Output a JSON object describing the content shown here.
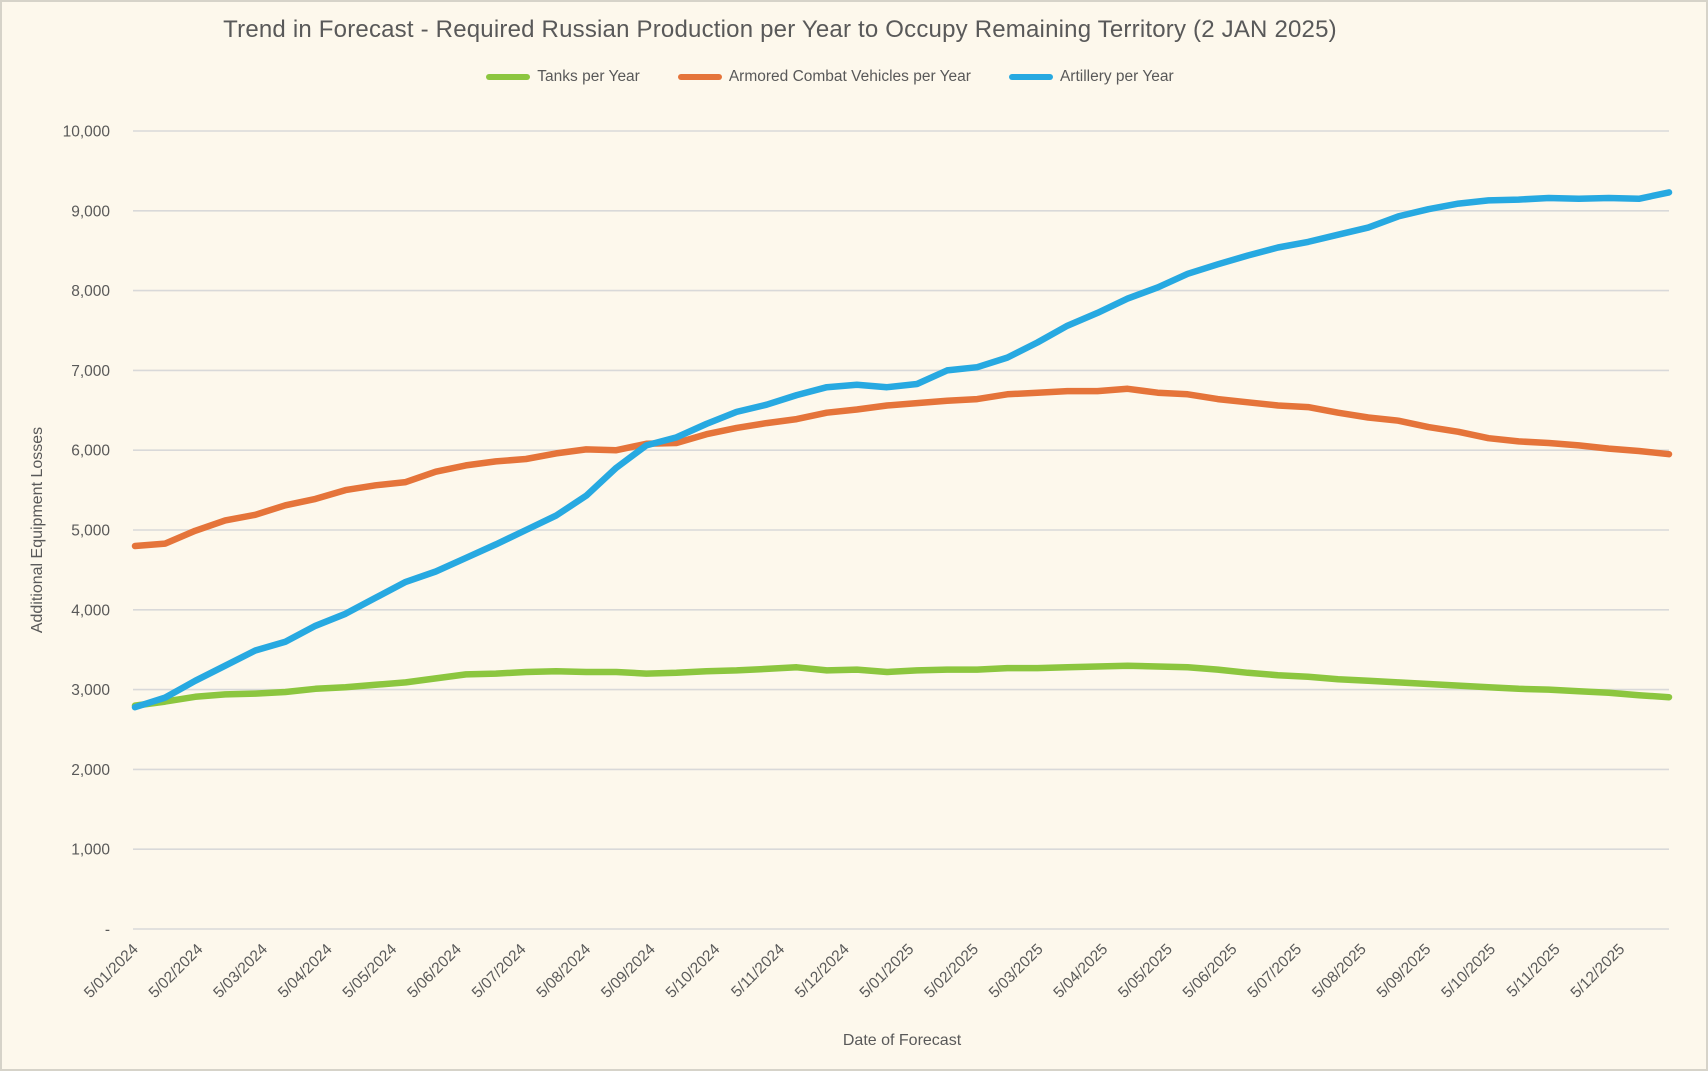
{
  "canvas": {
    "background_color": "#FDF8EC",
    "border_color": "#D6D3C9",
    "text_color": "#595959",
    "gridline_color": "#D9D9D9"
  },
  "chart_data": {
    "type": "line",
    "title": "Trend in Forecast - Required Russian Production per Year to Occupy Remaining Territory (2 JAN 2025)",
    "xlabel": "Date of Forecast",
    "ylabel": "Additional Equipment Losses",
    "ylim": [
      0,
      10000
    ],
    "y_tick_step": 1000,
    "y_tick_labels": [
      "-",
      "1,000",
      "2,000",
      "3,000",
      "4,000",
      "5,000",
      "6,000",
      "7,000",
      "8,000",
      "9,000",
      "10,000"
    ],
    "grid": true,
    "legend_position": "top",
    "x_tick_labels": [
      "5/01/2024",
      "5/02/2024",
      "5/03/2024",
      "5/04/2024",
      "5/05/2024",
      "5/06/2024",
      "5/07/2024",
      "5/08/2024",
      "5/09/2024",
      "5/10/2024",
      "5/11/2024",
      "5/12/2024",
      "5/01/2025",
      "5/02/2025",
      "5/03/2025",
      "5/04/2025",
      "5/05/2025",
      "5/06/2025",
      "5/07/2025",
      "5/08/2025",
      "5/09/2025",
      "5/10/2025",
      "5/11/2025",
      "5/12/2025"
    ],
    "series": [
      {
        "name": "Tanks per Year",
        "color": "#8CC63F",
        "values": [
          2800,
          2850,
          2910,
          2940,
          2950,
          2970,
          3010,
          3030,
          3060,
          3090,
          3140,
          3190,
          3200,
          3220,
          3230,
          3220,
          3220,
          3200,
          3210,
          3230,
          3240,
          3260,
          3280,
          3240,
          3250,
          3220,
          3240,
          3250,
          3250,
          3270,
          3270,
          3280,
          3290,
          3300,
          3290,
          3280,
          3250,
          3210,
          3180,
          3160,
          3130,
          3110,
          3090,
          3070,
          3050,
          3030,
          3010,
          3000,
          2980,
          2960,
          2930,
          2905
        ]
      },
      {
        "name": "Armored Combat Vehicles per Year",
        "color": "#E5743A",
        "values": [
          4800,
          4830,
          4990,
          5120,
          5190,
          5310,
          5390,
          5500,
          5560,
          5600,
          5730,
          5810,
          5860,
          5890,
          5960,
          6010,
          6000,
          6080,
          6090,
          6200,
          6280,
          6340,
          6390,
          6470,
          6510,
          6560,
          6590,
          6620,
          6640,
          6700,
          6720,
          6740,
          6740,
          6770,
          6720,
          6700,
          6640,
          6600,
          6560,
          6540,
          6470,
          6410,
          6370,
          6290,
          6230,
          6150,
          6110,
          6090,
          6060,
          6020,
          5990,
          5950
        ]
      },
      {
        "name": "Artillery per Year",
        "color": "#27A9E1",
        "values": [
          2780,
          2900,
          3110,
          3300,
          3490,
          3600,
          3800,
          3950,
          4150,
          4350,
          4480,
          4650,
          4820,
          5000,
          5180,
          5430,
          5780,
          6060,
          6160,
          6330,
          6480,
          6570,
          6690,
          6790,
          6820,
          6790,
          6830,
          7000,
          7040,
          7160,
          7350,
          7560,
          7720,
          7900,
          8040,
          8210,
          8330,
          8440,
          8540,
          8610,
          8700,
          8790,
          8930,
          9020,
          9090,
          9130,
          9140,
          9160,
          9150,
          9160,
          9150,
          9230
        ]
      }
    ]
  }
}
